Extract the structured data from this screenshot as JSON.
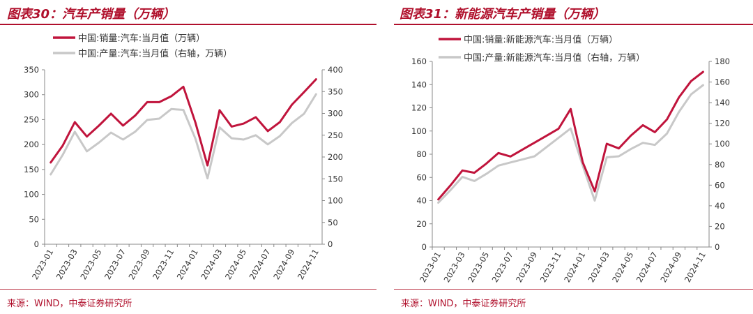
{
  "charts": [
    {
      "figure_title": "图表30：汽车产销量（万辆）",
      "source": "来源：WIND，中泰证券研究所",
      "colors": {
        "primary": "#c0143c",
        "secondary": "#c8c8c8"
      }
    },
    {
      "figure_title": "图表31：新能源汽车产销量（万辆）",
      "source": "来源：WIND，中泰证券研究所",
      "colors": {
        "primary": "#c0143c",
        "secondary": "#c8c8c8"
      }
    }
  ],
  "chart_data": [
    {
      "type": "line",
      "x": [
        "2023-01",
        "2023-02",
        "2023-03",
        "2023-04",
        "2023-05",
        "2023-06",
        "2023-07",
        "2023-08",
        "2023-09",
        "2023-10",
        "2023-11",
        "2023-12",
        "2024-01",
        "2024-02",
        "2024-03",
        "2024-04",
        "2024-05",
        "2024-06",
        "2024-07",
        "2024-08",
        "2024-09",
        "2024-10",
        "2024-11"
      ],
      "xticklabels": [
        "2023-01",
        "2023-03",
        "2023-05",
        "2023-07",
        "2023-09",
        "2023-11",
        "2024-01",
        "2024-03",
        "2024-05",
        "2024-07",
        "2024-09",
        "2024-11"
      ],
      "series": [
        {
          "name": "中国:销量:汽车:当月值（万辆）",
          "axis": "left",
          "values": [
            164,
            198,
            245,
            216,
            238,
            262,
            238,
            258,
            285,
            285,
            297,
            316,
            244,
            158,
            269,
            236,
            242,
            255,
            227,
            245,
            280,
            305,
            331
          ]
        },
        {
          "name": "中国:产量:汽车:当月值（右轴，万辆）",
          "axis": "right",
          "values": [
            160,
            205,
            258,
            213,
            233,
            256,
            240,
            258,
            285,
            288,
            310,
            308,
            242,
            151,
            268,
            243,
            240,
            250,
            229,
            248,
            278,
            299,
            344
          ]
        }
      ],
      "ylim_left": [
        0,
        350
      ],
      "yticks_left": [
        0,
        50,
        100,
        150,
        200,
        250,
        300,
        350
      ],
      "ylim_right": [
        0,
        400
      ],
      "yticks_right": [
        0,
        50,
        100,
        150,
        200,
        250,
        300,
        350,
        400
      ],
      "legend_position": "top"
    },
    {
      "type": "line",
      "x": [
        "2023-01",
        "2023-02",
        "2023-03",
        "2023-04",
        "2023-05",
        "2023-06",
        "2023-07",
        "2023-08",
        "2023-09",
        "2023-10",
        "2023-11",
        "2023-12",
        "2024-01",
        "2024-02",
        "2024-03",
        "2024-04",
        "2024-05",
        "2024-06",
        "2024-07",
        "2024-08",
        "2024-09",
        "2024-10",
        "2024-11"
      ],
      "xticklabels": [
        "2023-01",
        "2023-03",
        "2023-05",
        "2023-07",
        "2023-09",
        "2023-11",
        "2024-01",
        "2024-03",
        "2024-05",
        "2024-07",
        "2024-09",
        "2024-11"
      ],
      "series": [
        {
          "name": "中国:销量:新能源汽车:当月值（万辆）",
          "axis": "left",
          "values": [
            41,
            53,
            66,
            64,
            72,
            81,
            78,
            84,
            90,
            96,
            102,
            119,
            73,
            48,
            89,
            85,
            96,
            105,
            99,
            110,
            129,
            143,
            151
          ]
        },
        {
          "name": "中国:产量:新能源汽车:当月值（右轴，万辆）",
          "axis": "right",
          "values": [
            43,
            55,
            68,
            64,
            71,
            79,
            82,
            85,
            88,
            97,
            106,
            115,
            79,
            45,
            87,
            88,
            95,
            101,
            99,
            110,
            131,
            148,
            157
          ]
        }
      ],
      "ylim_left": [
        0,
        160
      ],
      "yticks_left": [
        0,
        20,
        40,
        60,
        80,
        100,
        120,
        140,
        160
      ],
      "ylim_right": [
        0,
        180
      ],
      "yticks_right": [
        0,
        20,
        40,
        60,
        80,
        100,
        120,
        140,
        160,
        180
      ],
      "legend_position": "top"
    }
  ]
}
